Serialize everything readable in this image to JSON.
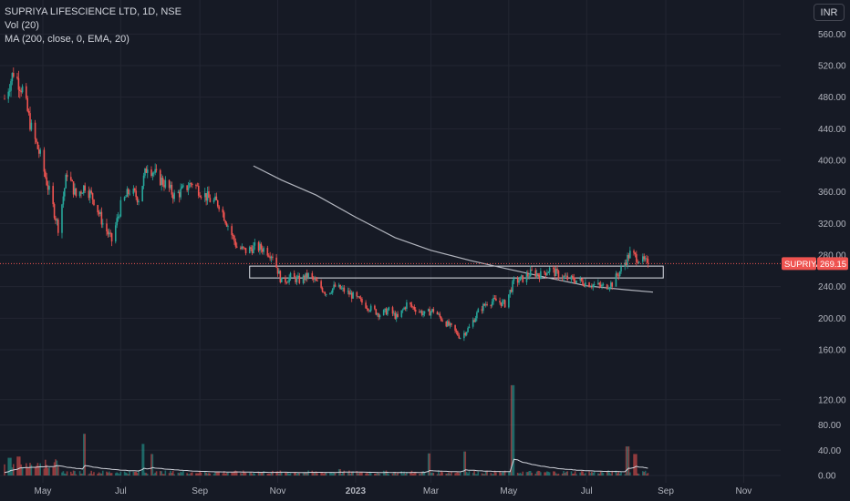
{
  "legend": {
    "symbol": "SUPRIYA LIFESCIENCE LTD, 1D, NSE",
    "volume": "Vol (20)",
    "ma": "MA (200, close, 0, EMA, 20)"
  },
  "currency": "INR",
  "price_label": {
    "ticker": "SUPRIYA",
    "value": "269.15"
  },
  "colors": {
    "background": "#161a25",
    "up": "#26a69a",
    "down": "#ef5350",
    "ma_line": "#b2b5be",
    "price_line": "#ef5350",
    "volume_ma": "#d1d4dc"
  },
  "chart_data": {
    "type": "candlestick",
    "title": "SUPRIYA LIFESCIENCE LTD, 1D, NSE",
    "price_axis": {
      "ticks": [
        "560.00",
        "520.00",
        "480.00",
        "440.00",
        "400.00",
        "360.00",
        "320.00",
        "280.00",
        "240.00",
        "200.00",
        "160.00"
      ],
      "range": [
        145,
        580
      ]
    },
    "volume_axis": {
      "ticks": [
        "120.00",
        "80.00",
        "40.00",
        "0.00"
      ],
      "range": [
        0,
        150
      ]
    },
    "x_ticks": [
      "May",
      "Jul",
      "Sep",
      "Nov",
      "2023",
      "Mar",
      "May",
      "Jul",
      "Sep",
      "Nov"
    ],
    "x_range": [
      "2022-04-01",
      "2023-11-30"
    ],
    "last_price": 269.15,
    "price_path": [
      [
        "2022-04-01",
        478
      ],
      [
        "2022-04-08",
        512
      ],
      [
        "2022-04-15",
        490
      ],
      [
        "2022-04-22",
        440
      ],
      [
        "2022-04-29",
        405
      ],
      [
        "2022-05-06",
        360
      ],
      [
        "2022-05-13",
        315
      ],
      [
        "2022-05-20",
        385
      ],
      [
        "2022-05-27",
        355
      ],
      [
        "2022-06-03",
        368
      ],
      [
        "2022-06-10",
        350
      ],
      [
        "2022-06-17",
        320
      ],
      [
        "2022-06-24",
        298
      ],
      [
        "2022-07-01",
        342
      ],
      [
        "2022-07-08",
        362
      ],
      [
        "2022-07-15",
        352
      ],
      [
        "2022-07-22",
        395
      ],
      [
        "2022-07-29",
        380
      ],
      [
        "2022-08-05",
        370
      ],
      [
        "2022-08-12",
        355
      ],
      [
        "2022-08-19",
        362
      ],
      [
        "2022-08-26",
        372
      ],
      [
        "2022-09-02",
        360
      ],
      [
        "2022-09-09",
        350
      ],
      [
        "2022-09-16",
        345
      ],
      [
        "2022-09-23",
        318
      ],
      [
        "2022-09-30",
        290
      ],
      [
        "2022-10-07",
        285
      ],
      [
        "2022-10-14",
        290
      ],
      [
        "2022-10-21",
        288
      ],
      [
        "2022-10-28",
        280
      ],
      [
        "2022-11-04",
        246
      ],
      [
        "2022-11-11",
        252
      ],
      [
        "2022-11-18",
        248
      ],
      [
        "2022-11-25",
        254
      ],
      [
        "2022-12-02",
        244
      ],
      [
        "2022-12-09",
        232
      ],
      [
        "2022-12-16",
        240
      ],
      [
        "2022-12-23",
        235
      ],
      [
        "2022-12-30",
        228
      ],
      [
        "2023-01-06",
        220
      ],
      [
        "2023-01-13",
        212
      ],
      [
        "2023-01-20",
        205
      ],
      [
        "2023-01-27",
        210
      ],
      [
        "2023-02-03",
        200
      ],
      [
        "2023-02-10",
        218
      ],
      [
        "2023-02-17",
        212
      ],
      [
        "2023-02-24",
        205
      ],
      [
        "2023-03-03",
        210
      ],
      [
        "2023-03-10",
        198
      ],
      [
        "2023-03-17",
        188
      ],
      [
        "2023-03-24",
        176
      ],
      [
        "2023-03-31",
        188
      ],
      [
        "2023-04-07",
        208
      ],
      [
        "2023-04-14",
        220
      ],
      [
        "2023-04-21",
        222
      ],
      [
        "2023-04-28",
        218
      ],
      [
        "2023-05-05",
        246
      ],
      [
        "2023-05-12",
        250
      ],
      [
        "2023-05-19",
        258
      ],
      [
        "2023-05-26",
        255
      ],
      [
        "2023-06-02",
        262
      ],
      [
        "2023-06-09",
        255
      ],
      [
        "2023-06-16",
        250
      ],
      [
        "2023-06-23",
        248
      ],
      [
        "2023-06-30",
        245
      ],
      [
        "2023-07-07",
        242
      ],
      [
        "2023-07-14",
        240
      ],
      [
        "2023-07-21",
        244
      ],
      [
        "2023-07-28",
        262
      ],
      [
        "2023-08-04",
        282
      ],
      [
        "2023-08-11",
        275
      ],
      [
        "2023-08-18",
        269.15
      ]
    ],
    "ma_path": [
      [
        "2022-10-13",
        393
      ],
      [
        "2022-11-04",
        375
      ],
      [
        "2022-12-01",
        356
      ],
      [
        "2023-01-01",
        328
      ],
      [
        "2023-02-01",
        302
      ],
      [
        "2023-03-01",
        286
      ],
      [
        "2023-04-01",
        273
      ],
      [
        "2023-05-01",
        262
      ],
      [
        "2023-06-01",
        251
      ],
      [
        "2023-07-01",
        241
      ],
      [
        "2023-08-01",
        236
      ],
      [
        "2023-08-22",
        233
      ]
    ],
    "zone": {
      "from": "2022-10-10",
      "to": "2023-08-30",
      "low": 251,
      "high": 266
    },
    "volume_spikes": [
      [
        "2022-04-05",
        28
      ],
      [
        "2022-04-12",
        30
      ],
      [
        "2022-06-03",
        66
      ],
      [
        "2022-07-18",
        50
      ],
      [
        "2022-07-25",
        34
      ],
      [
        "2022-12-19",
        10
      ],
      [
        "2023-02-27",
        35
      ],
      [
        "2023-03-27",
        38
      ],
      [
        "2023-05-04",
        143
      ],
      [
        "2023-08-02",
        46
      ],
      [
        "2023-08-08",
        34
      ]
    ]
  }
}
